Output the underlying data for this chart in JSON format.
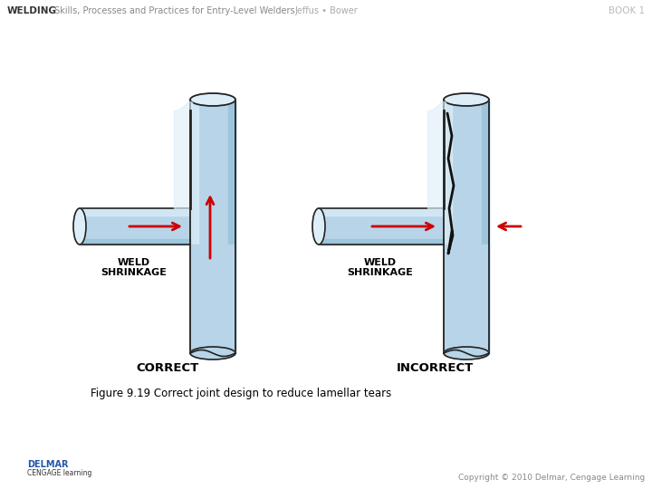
{
  "bg_color": "#ffffff",
  "title_header_bold": "WELDING",
  "title_header_rest": " Skills, Processes and Practices for Entry-Level Welders",
  "title_header2": "Jeffus • Bower",
  "title_header3": "BOOK 1",
  "caption": "Figure 9.19 Correct joint design to reduce lamellar tears",
  "correct_label": "CORRECT",
  "incorrect_label": "INCORRECT",
  "weld_shrinkage_1": "WELD",
  "weld_shrinkage_2": "SHRINKAGE",
  "copyright": "Copyright © 2010 Delmar, Cengage Learning",
  "lb": "#b8d4e8",
  "mb": "#9dc5dc",
  "hl": "#ddeef8",
  "dk": "#222222",
  "rd": "#cc0000",
  "ck": "#111111",
  "fig_w": 7.2,
  "fig_h": 5.4,
  "dpi": 100
}
